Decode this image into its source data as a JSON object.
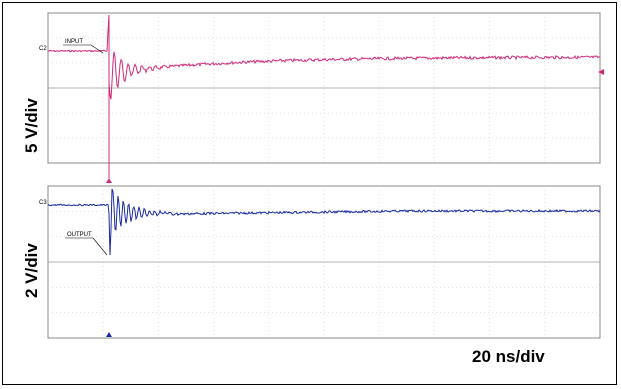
{
  "chart_data": {
    "type": "line",
    "timebase": "20 ns/div",
    "x_divisions": 10,
    "panels": [
      {
        "channel": "C2",
        "scale": "5 V/div",
        "annotation": "INPUT",
        "color": "#d02a7a",
        "series_desc": "input trace with large negative spike at trigger, then ringing settling to steady level",
        "baseline_div": 3.5,
        "spike_min_div": -2.0,
        "trigger_div": 1.0
      },
      {
        "channel": "C3",
        "scale": "2 V/div",
        "annotation": "OUTPUT",
        "color": "#1a2aa0",
        "series_desc": "output trace with ringing at trigger, then settling to steady level",
        "baseline_div": 3.5,
        "trigger_div": 1.0
      }
    ]
  }
}
